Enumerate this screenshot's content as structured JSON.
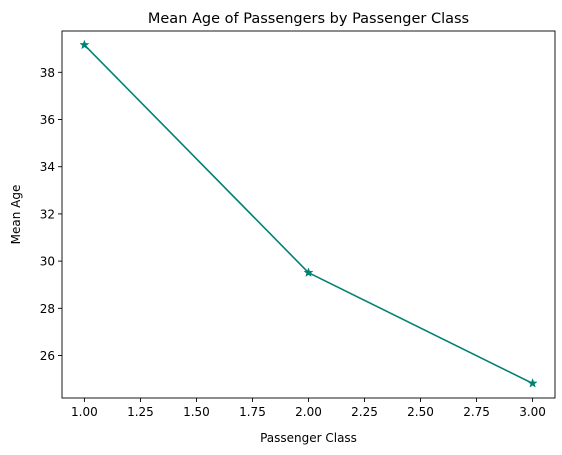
{
  "chart_data": {
    "type": "line",
    "title": "Mean Age of Passengers by Passenger Class",
    "xlabel": "Passenger Class",
    "ylabel": "Mean Age",
    "x": [
      1.0,
      2.0,
      3.0
    ],
    "series": [
      {
        "values": [
          39.16,
          29.51,
          24.82
        ],
        "color": "#008272",
        "marker": "star"
      }
    ],
    "xlim": [
      0.9,
      3.1
    ],
    "ylim": [
      24.2,
      39.75
    ],
    "xticks": [
      1.0,
      1.25,
      1.5,
      1.75,
      2.0,
      2.25,
      2.5,
      2.75,
      3.0
    ],
    "xtick_labels": [
      "1.00",
      "1.25",
      "1.50",
      "1.75",
      "2.00",
      "2.25",
      "2.50",
      "2.75",
      "3.00"
    ],
    "yticks": [
      26,
      28,
      30,
      32,
      34,
      36,
      38
    ],
    "ytick_labels": [
      "26",
      "28",
      "30",
      "32",
      "34",
      "36",
      "38"
    ],
    "grid": false,
    "legend": false
  }
}
